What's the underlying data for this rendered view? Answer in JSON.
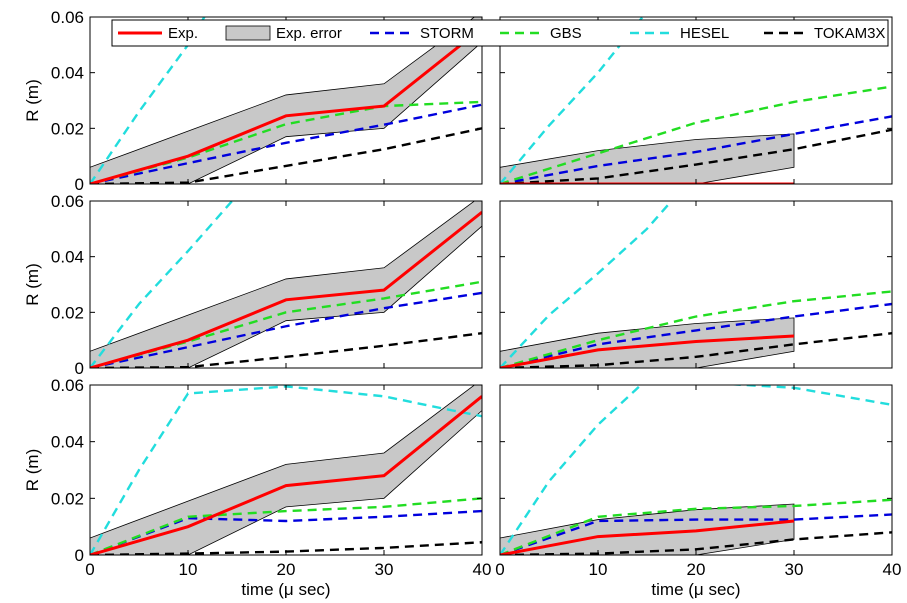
{
  "chart_data": {
    "type": "line",
    "layout": "3x2 grid",
    "xlabel": "time (μ sec)",
    "ylabel": "R (m)",
    "xlim": [
      0,
      40
    ],
    "ylim": [
      0,
      0.06
    ],
    "x_ticks": [
      "0",
      "10",
      "20",
      "30",
      "40"
    ],
    "y_ticks": [
      "0",
      "0.02",
      "0.04",
      "0.06"
    ],
    "legend": {
      "placement": "top, inside top row",
      "entries": [
        {
          "label": "Exp.",
          "color": "#ff0000",
          "style": "solid"
        },
        {
          "label": "Exp. error",
          "color": "#c8c8c8",
          "style": "band"
        },
        {
          "label": "STORM",
          "color": "#0000dd",
          "style": "dashed"
        },
        {
          "label": "GBS",
          "color": "#22dd22",
          "style": "dashed"
        },
        {
          "label": "HESEL",
          "color": "#22dddd",
          "style": "dashed"
        },
        {
          "label": "TOKAM3X",
          "color": "#000000",
          "style": "dashed"
        }
      ]
    },
    "panels": [
      {
        "exp": {
          "x": [
            0,
            10,
            20,
            30,
            40
          ],
          "y": [
            0,
            0.01,
            0.0245,
            0.028,
            0.056
          ],
          "lower": [
            0,
            0,
            0.017,
            0.02,
            0.051
          ],
          "upper": [
            0.006,
            0.019,
            0.032,
            0.036,
            0.062
          ]
        },
        "series": [
          {
            "name": "STORM",
            "x": [
              0,
              10,
              20,
              30,
              40
            ],
            "y": [
              0,
              0.0075,
              0.0148,
              0.0213,
              0.0285
            ]
          },
          {
            "name": "GBS",
            "x": [
              0,
              10,
              20,
              30,
              40
            ],
            "y": [
              0,
              0.0095,
              0.0215,
              0.028,
              0.0295
            ]
          },
          {
            "name": "HESEL",
            "x": [
              0,
              5,
              10,
              12
            ],
            "y": [
              0,
              0.026,
              0.05,
              0.062
            ]
          },
          {
            "name": "TOKAM3X",
            "x": [
              0,
              10,
              20,
              30,
              40
            ],
            "y": [
              0,
              0.0005,
              0.0065,
              0.0125,
              0.02
            ]
          }
        ]
      },
      {
        "exp": {
          "x": [
            0,
            10,
            20,
            30
          ],
          "y": [
            0,
            0,
            0,
            0
          ],
          "lower": [
            0,
            0,
            0,
            0.006
          ],
          "upper": [
            0.006,
            0.012,
            0.016,
            0.018
          ]
        },
        "series": [
          {
            "name": "STORM",
            "x": [
              0,
              10,
              20,
              30,
              40
            ],
            "y": [
              0,
              0.0065,
              0.0115,
              0.018,
              0.0243
            ]
          },
          {
            "name": "GBS",
            "x": [
              0,
              10,
              20,
              30,
              40
            ],
            "y": [
              0,
              0.011,
              0.022,
              0.0295,
              0.035
            ]
          },
          {
            "name": "HESEL",
            "x": [
              0,
              5,
              10,
              15
            ],
            "y": [
              0,
              0.021,
              0.04,
              0.062
            ]
          },
          {
            "name": "TOKAM3X",
            "x": [
              0,
              10,
              20,
              30,
              40
            ],
            "y": [
              0,
              0.002,
              0.007,
              0.0125,
              0.0195
            ]
          }
        ]
      },
      {
        "exp": {
          "x": [
            0,
            10,
            20,
            30,
            40
          ],
          "y": [
            0,
            0.01,
            0.0245,
            0.028,
            0.056
          ],
          "lower": [
            0,
            0,
            0.017,
            0.02,
            0.051
          ],
          "upper": [
            0.006,
            0.019,
            0.032,
            0.036,
            0.062
          ]
        },
        "series": [
          {
            "name": "STORM",
            "x": [
              0,
              10,
              20,
              30,
              40
            ],
            "y": [
              0,
              0.0075,
              0.015,
              0.0215,
              0.027
            ]
          },
          {
            "name": "GBS",
            "x": [
              0,
              10,
              20,
              30,
              40
            ],
            "y": [
              0,
              0.0095,
              0.02,
              0.025,
              0.031
            ]
          },
          {
            "name": "HESEL",
            "x": [
              0,
              5,
              10,
              15
            ],
            "y": [
              0,
              0.023,
              0.042,
              0.062
            ]
          },
          {
            "name": "TOKAM3X",
            "x": [
              0,
              10,
              20,
              30,
              40
            ],
            "y": [
              0,
              0.0003,
              0.004,
              0.008,
              0.0125
            ]
          }
        ]
      },
      {
        "exp": {
          "x": [
            0,
            10,
            20,
            30
          ],
          "y": [
            0,
            0.0065,
            0.0095,
            0.0115
          ],
          "lower": [
            0,
            0,
            0,
            0.006
          ],
          "upper": [
            0.006,
            0.0125,
            0.016,
            0.018
          ]
        },
        "series": [
          {
            "name": "STORM",
            "x": [
              0,
              10,
              20,
              30,
              40
            ],
            "y": [
              0,
              0.0085,
              0.0135,
              0.0185,
              0.023
            ]
          },
          {
            "name": "GBS",
            "x": [
              0,
              10,
              20,
              30,
              40
            ],
            "y": [
              0,
              0.01,
              0.0185,
              0.024,
              0.0275
            ]
          },
          {
            "name": "HESEL",
            "x": [
              0,
              5,
              10,
              15,
              18
            ],
            "y": [
              0,
              0.019,
              0.034,
              0.05,
              0.062
            ]
          },
          {
            "name": "TOKAM3X",
            "x": [
              0,
              10,
              20,
              30,
              40
            ],
            "y": [
              0,
              0.001,
              0.004,
              0.0085,
              0.0125
            ]
          }
        ]
      },
      {
        "exp": {
          "x": [
            0,
            10,
            20,
            30,
            40
          ],
          "y": [
            0,
            0.01,
            0.0245,
            0.028,
            0.056
          ],
          "lower": [
            0,
            0,
            0.017,
            0.02,
            0.051
          ],
          "upper": [
            0.006,
            0.019,
            0.032,
            0.036,
            0.062
          ]
        },
        "series": [
          {
            "name": "STORM",
            "x": [
              0,
              10,
              20,
              30,
              40
            ],
            "y": [
              0,
              0.013,
              0.012,
              0.0135,
              0.0155
            ]
          },
          {
            "name": "GBS",
            "x": [
              0,
              10,
              20,
              30,
              40
            ],
            "y": [
              0,
              0.0135,
              0.0155,
              0.017,
              0.02
            ]
          },
          {
            "name": "HESEL",
            "x": [
              0,
              5,
              10,
              20,
              30,
              37,
              40
            ],
            "y": [
              0,
              0.03,
              0.057,
              0.0595,
              0.056,
              0.051,
              0.049
            ]
          },
          {
            "name": "TOKAM3X",
            "x": [
              0,
              10,
              20,
              30,
              40
            ],
            "y": [
              0,
              0.0005,
              0.0012,
              0.0025,
              0.0045
            ]
          }
        ]
      },
      {
        "exp": {
          "x": [
            0,
            10,
            20,
            30
          ],
          "y": [
            0,
            0.0065,
            0.0085,
            0.012
          ],
          "lower": [
            0,
            0,
            0,
            0.0055
          ],
          "upper": [
            0.006,
            0.0125,
            0.016,
            0.018
          ]
        },
        "series": [
          {
            "name": "STORM",
            "x": [
              0,
              10,
              20,
              30,
              40
            ],
            "y": [
              0,
              0.012,
              0.0125,
              0.0125,
              0.0143
            ]
          },
          {
            "name": "GBS",
            "x": [
              0,
              10,
              20,
              30,
              40
            ],
            "y": [
              0,
              0.0135,
              0.0163,
              0.0173,
              0.0195
            ]
          },
          {
            "name": "HESEL",
            "x": [
              0,
              5,
              10,
              15,
              30,
              35,
              40
            ],
            "y": [
              0,
              0.026,
              0.046,
              0.062,
              0.059,
              0.056,
              0.053
            ]
          },
          {
            "name": "TOKAM3X",
            "x": [
              0,
              10,
              20,
              30,
              40
            ],
            "y": [
              0,
              0.0005,
              0.002,
              0.0055,
              0.008
            ]
          }
        ]
      }
    ]
  }
}
